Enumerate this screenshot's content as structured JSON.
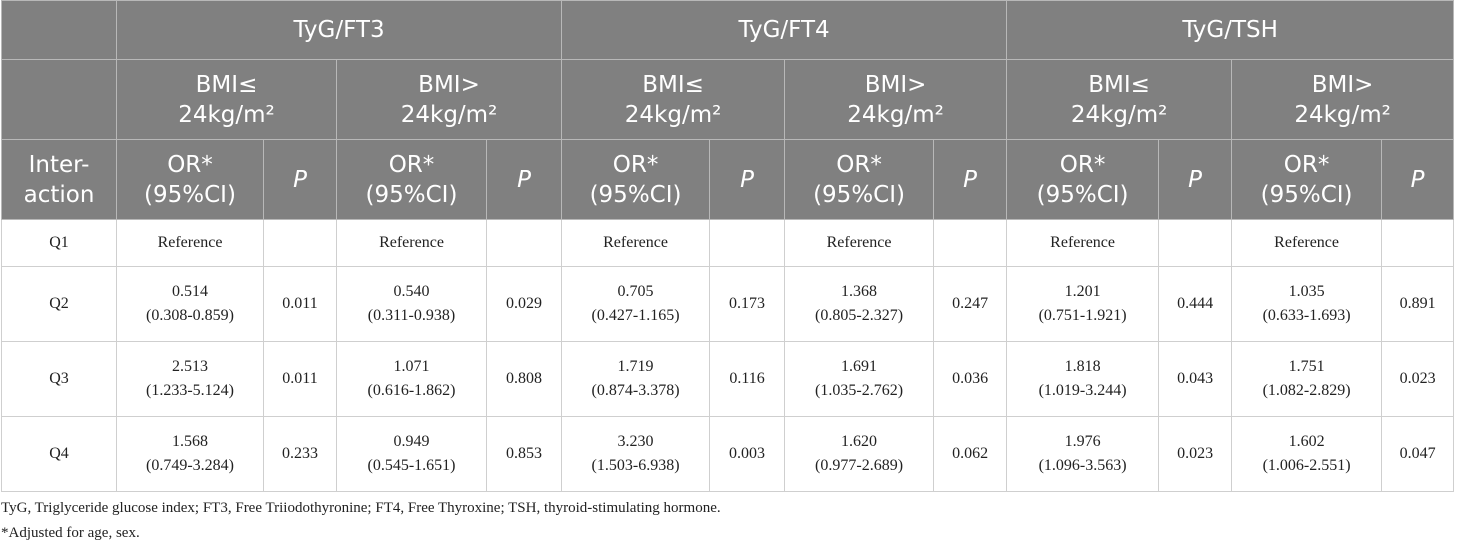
{
  "header": {
    "groups": [
      "TyG/FT3",
      "TyG/FT4",
      "TyG/TSH"
    ],
    "subgroups": [
      "BMI≤ 24kg/m²",
      "BMI> 24kg/m²",
      "BMI≤ 24kg/m²",
      "BMI> 24kg/m²",
      "BMI≤ 24kg/m²",
      "BMI> 24kg/m²"
    ],
    "row_label": "Inter-action",
    "columns": [
      "OR* (95%CI)",
      "P",
      "OR* (95%CI)",
      "P",
      "OR* (95%CI)",
      "P",
      "OR* (95%CI)",
      "P",
      "OR* (95%CI)",
      "P",
      "OR* (95%CI)",
      "P"
    ]
  },
  "table": {
    "rows": [
      {
        "label": "Q1",
        "cells": [
          {
            "or": "Reference"
          },
          {
            "or": "Reference"
          },
          {
            "or": "Reference"
          },
          {
            "or": "Reference"
          },
          {
            "or": "Reference"
          },
          {
            "or": "Reference"
          }
        ]
      },
      {
        "label": "Q2",
        "cells": [
          {
            "or": "0.514",
            "ci": "(0.308-0.859)",
            "p": "0.011"
          },
          {
            "or": "0.540",
            "ci": "(0.311-0.938)",
            "p": "0.029"
          },
          {
            "or": "0.705",
            "ci": "(0.427-1.165)",
            "p": "0.173"
          },
          {
            "or": "1.368",
            "ci": "(0.805-2.327)",
            "p": "0.247"
          },
          {
            "or": "1.201",
            "ci": "(0.751-1.921)",
            "p": "0.444"
          },
          {
            "or": "1.035",
            "ci": "(0.633-1.693)",
            "p": "0.891"
          }
        ]
      },
      {
        "label": "Q3",
        "cells": [
          {
            "or": "2.513",
            "ci": "(1.233-5.124)",
            "p": "0.011"
          },
          {
            "or": "1.071",
            "ci": "(0.616-1.862)",
            "p": "0.808"
          },
          {
            "or": "1.719",
            "ci": "(0.874-3.378)",
            "p": "0.116"
          },
          {
            "or": "1.691",
            "ci": "(1.035-2.762)",
            "p": "0.036"
          },
          {
            "or": "1.818",
            "ci": "(1.019-3.244)",
            "p": "0.043"
          },
          {
            "or": "1.751",
            "ci": "(1.082-2.829)",
            "p": "0.023"
          }
        ]
      },
      {
        "label": "Q4",
        "cells": [
          {
            "or": "1.568",
            "ci": "(0.749-3.284)",
            "p": "0.233"
          },
          {
            "or": "0.949",
            "ci": "(0.545-1.651)",
            "p": "0.853"
          },
          {
            "or": "3.230",
            "ci": "(1.503-6.938)",
            "p": "0.003"
          },
          {
            "or": "1.620",
            "ci": "(0.977-2.689)",
            "p": "0.062"
          },
          {
            "or": "1.976",
            "ci": "(1.096-3.563)",
            "p": "0.023"
          },
          {
            "or": "1.602",
            "ci": "(1.006-2.551)",
            "p": "0.047"
          }
        ]
      }
    ]
  },
  "footnotes": [
    "TyG, Triglyceride glucose index; FT3, Free Triiodothyronine; FT4, Free Thyroxine; TSH, thyroid-stimulating hormone.",
    "*Adjusted for age, sex."
  ]
}
